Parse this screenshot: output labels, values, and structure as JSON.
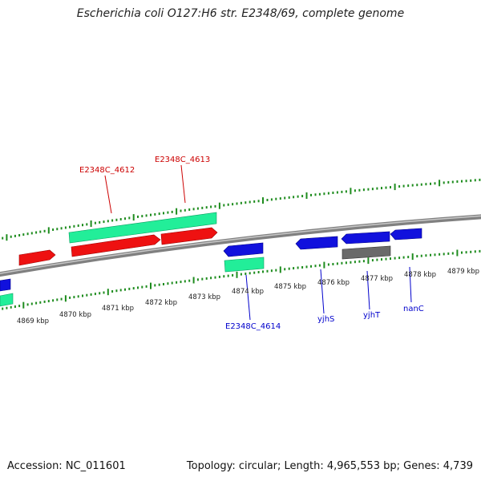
{
  "title": "Escherichia coli O127:H6 str. E2348/69, complete genome",
  "footer": {
    "accession": "Accession: NC_011601",
    "summary": "Topology: circular; Length: 4,965,553 bp; Genes: 4,739"
  },
  "colors": {
    "backbone": "#808080",
    "tick": "#1e8c1e",
    "forward_cds": "#ee1111",
    "forward_gene": "#22ee99",
    "reverse_cds": "#1111dd",
    "pseudo": "#6a6a6a",
    "forward_label": "#cc0000",
    "reverse_label": "#0000cc"
  },
  "kbp_labels": [
    "4869 kbp",
    "4870 kbp",
    "4871 kbp",
    "4872 kbp",
    "4873 kbp",
    "4874 kbp",
    "4875 kbp",
    "4876 kbp",
    "4877 kbp",
    "4878 kbp",
    "4879 kbp"
  ],
  "gene_labels": {
    "forward": [
      "E2348C_4612",
      "E2348C_4613"
    ],
    "reverse": [
      "E2348C_4614",
      "yjhS",
      "yjhT",
      "nanC"
    ]
  }
}
